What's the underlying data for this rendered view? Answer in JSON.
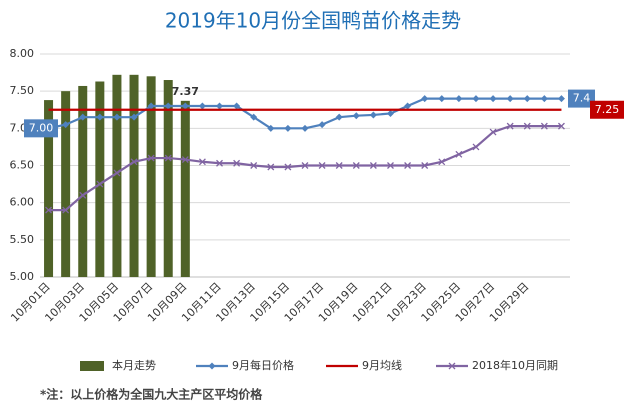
{
  "chart_data": {
    "type": "bar",
    "title": "2019年10月份全国鸭苗价格走势",
    "categories": [
      "10月01日",
      null,
      "10月03日",
      null,
      "10月05日",
      null,
      "10月07日",
      null,
      "10月09日",
      null,
      "10月11日",
      null,
      "10月13日",
      null,
      "10月15日",
      null,
      "10月17日",
      null,
      "10月19日",
      null,
      "10月21日",
      null,
      "10月23日",
      null,
      "10月25日",
      null,
      "10月27日",
      null,
      "10月29日",
      null,
      null
    ],
    "series": [
      {
        "name": "本月走势",
        "type": "bar",
        "color": "#4f6228",
        "values": [
          7.38,
          7.5,
          7.57,
          7.63,
          7.72,
          7.72,
          7.7,
          7.65,
          7.37,
          null,
          null,
          null,
          null,
          null,
          null,
          null,
          null,
          null,
          null,
          null,
          null,
          null,
          null,
          null,
          null,
          null,
          null,
          null,
          null,
          null,
          null
        ],
        "value_labels": [
          null,
          null,
          null,
          null,
          null,
          null,
          null,
          null,
          "7.37",
          null,
          null,
          null,
          null,
          null,
          null,
          null,
          null,
          null,
          null,
          null,
          null,
          null,
          null,
          null,
          null,
          null,
          null,
          null,
          null,
          null,
          null
        ]
      },
      {
        "name": "9月每日价格",
        "type": "line",
        "color": "#4f81bd",
        "marker": "diamond",
        "values": [
          7.0,
          7.05,
          7.15,
          7.15,
          7.15,
          7.15,
          7.3,
          7.3,
          7.3,
          7.3,
          7.3,
          7.3,
          7.15,
          7.0,
          7.0,
          7.0,
          7.05,
          7.15,
          7.17,
          7.18,
          7.2,
          7.3,
          7.4,
          7.4,
          7.4,
          7.4,
          7.4,
          7.4,
          7.4,
          7.4,
          7.4
        ],
        "value_labels": [
          "7.00",
          null,
          null,
          null,
          null,
          null,
          null,
          null,
          null,
          null,
          null,
          null,
          null,
          null,
          null,
          null,
          null,
          null,
          null,
          null,
          null,
          null,
          null,
          null,
          null,
          null,
          null,
          null,
          null,
          null,
          "7.4"
        ]
      },
      {
        "name": "9月均线",
        "type": "line",
        "color": "#c00000",
        "values": [
          7.25,
          7.25,
          7.25,
          7.25,
          7.25,
          7.25,
          7.25,
          7.25,
          7.25,
          7.25,
          7.25,
          7.25,
          7.25,
          7.25,
          7.25,
          7.25,
          7.25,
          7.25,
          7.25,
          7.25,
          7.25,
          7.25,
          7.25,
          7.25,
          7.25,
          7.25,
          7.25,
          7.25,
          7.25,
          7.25,
          7.25
        ],
        "value_labels": [
          null,
          null,
          null,
          null,
          null,
          null,
          null,
          null,
          null,
          null,
          null,
          null,
          null,
          null,
          null,
          null,
          null,
          null,
          null,
          null,
          null,
          null,
          null,
          null,
          null,
          null,
          null,
          null,
          null,
          null,
          "7.25"
        ]
      },
      {
        "name": "2018年10月同期",
        "type": "line",
        "color": "#8064a2",
        "marker": "x",
        "values": [
          5.9,
          5.9,
          6.1,
          6.25,
          6.4,
          6.55,
          6.6,
          6.6,
          6.58,
          6.55,
          6.53,
          6.53,
          6.5,
          6.48,
          6.48,
          6.5,
          6.5,
          6.5,
          6.5,
          6.5,
          6.5,
          6.5,
          6.5,
          6.55,
          6.65,
          6.75,
          6.95,
          7.03,
          7.03,
          7.03,
          7.03
        ]
      }
    ],
    "ylim": [
      5,
      8
    ],
    "yticks": [
      {
        "value": 5,
        "label": "5.00"
      },
      {
        "value": 5.5,
        "label": "5.50"
      },
      {
        "value": 6,
        "label": "6.00"
      },
      {
        "value": 6.5,
        "label": "6.50"
      },
      {
        "value": 7,
        "label": "7.00"
      },
      {
        "value": 7.5,
        "label": "7.50"
      },
      {
        "value": 8,
        "label": "8.00"
      }
    ],
    "grid": true,
    "note": "*注：以上价格为全国九大主产区平均价格"
  }
}
